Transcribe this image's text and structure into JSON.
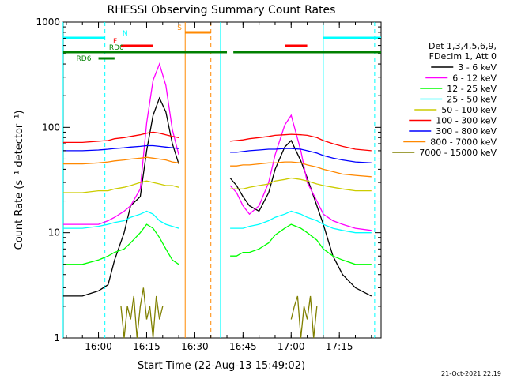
{
  "chart_data": {
    "type": "line",
    "title": "RHESSI Observing Summary Count Rates",
    "xlabel": "Start Time (22-Aug-13 15:49:02)",
    "ylabel": "Count Rate (s⁻¹ detector⁻¹)",
    "yscale": "log",
    "ylim": [
      1,
      1000
    ],
    "xlim": [
      "15:49:02",
      "17:28:00"
    ],
    "x_unit": "time UT",
    "xticks": [
      "16:00",
      "16:15",
      "16:30",
      "16:45",
      "17:00",
      "17:15"
    ],
    "yticks": [
      "1",
      "10",
      "100",
      "1000"
    ],
    "legend_header": [
      "Det 1,3,4,5,6,9,",
      "FDecim 1, Att 0"
    ],
    "footer_date": "21-Oct-2021 22:19",
    "series": [
      {
        "name": "3 - 6 keV",
        "color": "#000000",
        "x": [
          "15:49",
          "15:55",
          "16:00",
          "16:03",
          "16:05",
          "16:08",
          "16:10",
          "16:13",
          "16:15",
          "16:17",
          "16:19",
          "16:21",
          "16:23",
          "16:25",
          "16:41",
          "16:43",
          "16:45",
          "16:47",
          "16:50",
          "16:53",
          "16:55",
          "16:58",
          "17:00",
          "17:03",
          "17:05",
          "17:08",
          "17:10",
          "17:13",
          "17:16",
          "17:20",
          "17:25"
        ],
        "y": [
          2.5,
          2.5,
          2.8,
          3.2,
          5.5,
          10,
          18,
          22,
          60,
          130,
          190,
          140,
          70,
          45,
          33,
          28,
          22,
          18,
          16,
          24,
          40,
          65,
          75,
          48,
          33,
          18,
          12,
          6,
          4,
          3,
          2.5
        ]
      },
      {
        "name": "6 - 12 keV",
        "color": "#ff00ff",
        "x": [
          "15:49",
          "15:55",
          "16:00",
          "16:03",
          "16:05",
          "16:08",
          "16:10",
          "16:13",
          "16:15",
          "16:17",
          "16:19",
          "16:21",
          "16:23",
          "16:25",
          "16:41",
          "16:43",
          "16:45",
          "16:47",
          "16:50",
          "16:53",
          "16:55",
          "16:58",
          "17:00",
          "17:03",
          "17:05",
          "17:08",
          "17:10",
          "17:13",
          "17:16",
          "17:20",
          "17:25"
        ],
        "y": [
          12,
          12,
          12,
          13,
          14,
          16,
          18,
          26,
          110,
          280,
          400,
          250,
          95,
          55,
          28,
          24,
          18,
          15,
          18,
          30,
          55,
          105,
          130,
          60,
          30,
          20,
          15,
          13,
          12,
          11,
          10.5
        ]
      },
      {
        "name": "12 - 25 keV",
        "color": "#00ff00",
        "x": [
          "15:49",
          "15:55",
          "16:00",
          "16:03",
          "16:05",
          "16:08",
          "16:10",
          "16:13",
          "16:15",
          "16:17",
          "16:19",
          "16:21",
          "16:23",
          "16:25",
          "16:41",
          "16:43",
          "16:45",
          "16:47",
          "16:50",
          "16:53",
          "16:55",
          "16:58",
          "17:00",
          "17:03",
          "17:05",
          "17:08",
          "17:10",
          "17:13",
          "17:16",
          "17:20",
          "17:25"
        ],
        "y": [
          5,
          5,
          5.5,
          6,
          6.5,
          7,
          8,
          10,
          12,
          11,
          9,
          7,
          5.5,
          5,
          6,
          6,
          6.5,
          6.5,
          7,
          8,
          9.5,
          11,
          12,
          11,
          10,
          8.5,
          7,
          6,
          5.5,
          5,
          5
        ]
      },
      {
        "name": "25 - 50 keV",
        "color": "#00ffff",
        "x": [
          "15:49",
          "15:55",
          "16:00",
          "16:03",
          "16:05",
          "16:08",
          "16:10",
          "16:13",
          "16:15",
          "16:17",
          "16:19",
          "16:21",
          "16:23",
          "16:25",
          "16:41",
          "16:43",
          "16:45",
          "16:47",
          "16:50",
          "16:53",
          "16:55",
          "16:58",
          "17:00",
          "17:03",
          "17:05",
          "17:08",
          "17:10",
          "17:13",
          "17:16",
          "17:20",
          "17:25"
        ],
        "y": [
          11,
          11,
          11.5,
          12,
          12.5,
          13,
          14,
          15,
          16,
          15,
          13,
          12,
          11.5,
          11,
          11,
          11,
          11,
          11.5,
          12,
          13,
          14,
          15,
          16,
          15,
          14,
          13,
          12,
          11,
          10.5,
          10,
          10
        ]
      },
      {
        "name": "50 - 100 keV",
        "color": "#cccc00",
        "x": [
          "15:49",
          "15:55",
          "16:00",
          "16:03",
          "16:05",
          "16:08",
          "16:10",
          "16:13",
          "16:15",
          "16:17",
          "16:19",
          "16:21",
          "16:23",
          "16:25",
          "16:41",
          "16:43",
          "16:45",
          "16:47",
          "16:50",
          "16:53",
          "16:55",
          "16:58",
          "17:00",
          "17:03",
          "17:05",
          "17:08",
          "17:10",
          "17:13",
          "17:16",
          "17:20",
          "17:25"
        ],
        "y": [
          24,
          24,
          25,
          25,
          26,
          27,
          28,
          30,
          31,
          30,
          29,
          28,
          28,
          27,
          26,
          26,
          26,
          27,
          28,
          29,
          31,
          32,
          33,
          32,
          31,
          29,
          28,
          27,
          26,
          25,
          25
        ]
      },
      {
        "name": "100 - 300 keV",
        "color": "#ff0000",
        "x": [
          "15:49",
          "15:55",
          "16:00",
          "16:03",
          "16:05",
          "16:08",
          "16:10",
          "16:13",
          "16:15",
          "16:17",
          "16:19",
          "16:21",
          "16:23",
          "16:25",
          "16:41",
          "16:43",
          "16:45",
          "16:47",
          "16:50",
          "16:53",
          "16:55",
          "16:58",
          "17:00",
          "17:03",
          "17:05",
          "17:08",
          "17:10",
          "17:13",
          "17:16",
          "17:20",
          "17:25"
        ],
        "y": [
          72,
          72,
          74,
          75,
          78,
          80,
          82,
          85,
          88,
          90,
          88,
          85,
          82,
          80,
          74,
          75,
          76,
          78,
          80,
          82,
          84,
          85,
          86,
          85,
          84,
          80,
          75,
          70,
          66,
          62,
          60
        ]
      },
      {
        "name": "300 - 800 keV",
        "color": "#0000ff",
        "x": [
          "15:49",
          "15:55",
          "16:00",
          "16:03",
          "16:05",
          "16:08",
          "16:10",
          "16:13",
          "16:15",
          "16:17",
          "16:19",
          "16:21",
          "16:23",
          "16:25",
          "16:41",
          "16:43",
          "16:45",
          "16:47",
          "16:50",
          "16:53",
          "16:55",
          "16:58",
          "17:00",
          "17:03",
          "17:05",
          "17:08",
          "17:10",
          "17:13",
          "17:16",
          "17:20",
          "17:25"
        ],
        "y": [
          60,
          60,
          61,
          62,
          63,
          64,
          65,
          66,
          67,
          67,
          66,
          65,
          64,
          63,
          58,
          58,
          59,
          60,
          61,
          62,
          62,
          63,
          63,
          62,
          60,
          57,
          54,
          51,
          49,
          47,
          46
        ]
      },
      {
        "name": "800 - 7000 keV",
        "color": "#ff8800",
        "x": [
          "15:49",
          "15:55",
          "16:00",
          "16:03",
          "16:05",
          "16:08",
          "16:10",
          "16:13",
          "16:15",
          "16:17",
          "16:19",
          "16:21",
          "16:23",
          "16:25",
          "16:41",
          "16:43",
          "16:45",
          "16:47",
          "16:50",
          "16:53",
          "16:55",
          "16:58",
          "17:00",
          "17:03",
          "17:05",
          "17:08",
          "17:10",
          "17:13",
          "17:16",
          "17:20",
          "17:25"
        ],
        "y": [
          45,
          45,
          46,
          47,
          48,
          49,
          50,
          51,
          52,
          51,
          50,
          49,
          47,
          46,
          43,
          43,
          44,
          44,
          45,
          46,
          46,
          47,
          47,
          46,
          44,
          42,
          40,
          38,
          36,
          35,
          34
        ]
      },
      {
        "name": "7000 - 15000 keV",
        "color": "#808000",
        "x": [
          "16:07",
          "16:08",
          "16:09",
          "16:10",
          "16:11",
          "16:12",
          "16:13",
          "16:14",
          "16:15",
          "16:16",
          "16:17",
          "16:18",
          "16:19",
          "16:20",
          "17:00",
          "17:01",
          "17:02",
          "17:03",
          "17:04",
          "17:05",
          "17:06",
          "17:07",
          "17:08"
        ],
        "y": [
          2,
          1,
          2,
          1.5,
          2.5,
          1,
          2,
          3,
          1.5,
          2,
          1,
          2.5,
          1.5,
          2,
          1.5,
          2,
          2.5,
          1,
          2,
          1.5,
          2.5,
          1,
          2
        ]
      }
    ],
    "flags": [
      {
        "name": "N",
        "color": "#00ffff",
        "segments": [
          [
            "15:49",
            "16:02"
          ],
          [
            "17:10",
            "17:28"
          ]
        ]
      },
      {
        "name": "F",
        "color": "#ff0000",
        "segments": [
          [
            "16:07",
            "16:17"
          ],
          [
            "16:58",
            "17:05"
          ]
        ]
      },
      {
        "name": "S",
        "color": "#ff8800",
        "segments": [
          [
            "16:27",
            "16:35"
          ]
        ]
      },
      {
        "name": "RD0",
        "color": "#008000",
        "segments": [
          [
            "15:49",
            "16:40"
          ],
          [
            "16:42",
            "17:28"
          ]
        ]
      },
      {
        "name": "RD6",
        "color": "#008000",
        "segments": [
          [
            "16:00",
            "16:05"
          ]
        ]
      }
    ],
    "vlines": [
      {
        "time": "15:49",
        "color": "#00ffff",
        "style": "solid"
      },
      {
        "time": "16:02",
        "color": "#00ffff",
        "style": "dashed"
      },
      {
        "time": "16:27",
        "color": "#ff8800",
        "style": "solid"
      },
      {
        "time": "16:35",
        "color": "#ff8800",
        "style": "dashed"
      },
      {
        "time": "16:38",
        "color": "#00ffff",
        "style": "solid"
      },
      {
        "time": "17:10",
        "color": "#00ffff",
        "style": "solid"
      },
      {
        "time": "17:26",
        "color": "#00ffff",
        "style": "dashed"
      }
    ],
    "gaps": [
      [
        "16:25",
        "16:41"
      ]
    ],
    "legend_position": "right"
  }
}
